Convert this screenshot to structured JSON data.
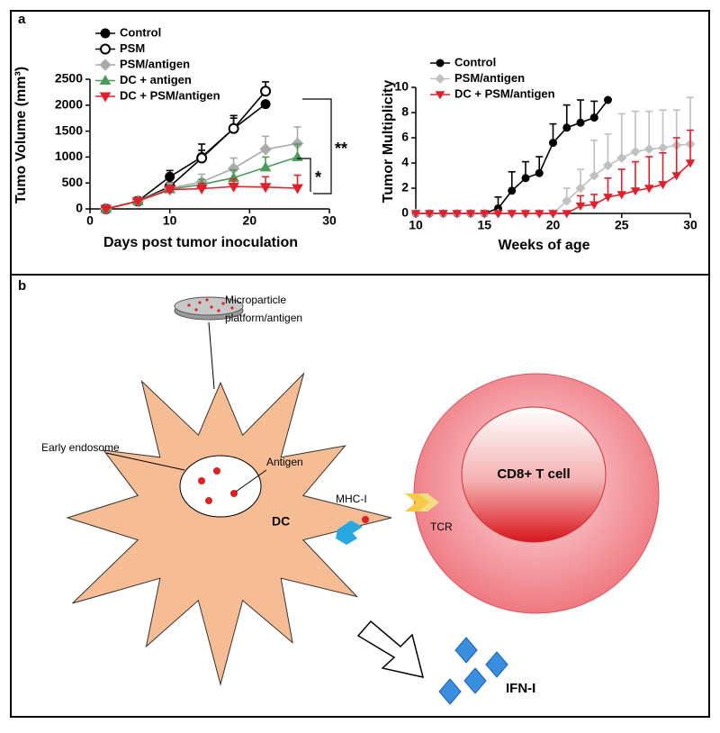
{
  "panel_labels": [
    "a",
    "b"
  ],
  "chart_data": [
    {
      "type": "line",
      "y_label": "Tumo Volume (mm³)",
      "x_label": "Days post tumor inoculation",
      "x": [
        2,
        6,
        10,
        14,
        18,
        22,
        26
      ],
      "xlim": [
        0,
        30
      ],
      "xticks": [
        0,
        10,
        20,
        30
      ],
      "ylim": [
        0,
        2500
      ],
      "yticks": [
        0,
        500,
        1000,
        1500,
        2000,
        2500
      ],
      "legend": "upper left",
      "annotations": [
        "**",
        "*"
      ],
      "series": [
        {
          "name": "Control",
          "color": "#000000",
          "marker": "circle",
          "values": [
            0,
            150,
            620,
            1000,
            1550,
            2020,
            null
          ],
          "errors": [
            0,
            20,
            120,
            250,
            200,
            0,
            null
          ]
        },
        {
          "name": "PSM",
          "color": "#000000",
          "marker": "open-circle",
          "values": [
            0,
            150,
            430,
            980,
            1550,
            2270,
            null
          ],
          "errors": [
            0,
            20,
            80,
            150,
            250,
            180,
            null
          ]
        },
        {
          "name": "PSM/antigen",
          "color": "#aaaaaa",
          "marker": "diamond",
          "values": [
            0,
            150,
            400,
            520,
            780,
            1150,
            1260
          ],
          "errors": [
            0,
            20,
            100,
            150,
            200,
            250,
            320
          ]
        },
        {
          "name": "DC + antigen",
          "color": "#4c9a5a",
          "marker": "triangle",
          "values": [
            0,
            150,
            380,
            470,
            600,
            800,
            1000
          ],
          "errors": [
            0,
            20,
            80,
            100,
            150,
            200,
            250
          ]
        },
        {
          "name": "DC + PSM/antigen",
          "color": "#e0202a",
          "marker": "triangle-down",
          "values": [
            0,
            150,
            370,
            390,
            430,
            420,
            400
          ],
          "errors": [
            0,
            20,
            80,
            100,
            150,
            200,
            250
          ]
        }
      ]
    },
    {
      "type": "line",
      "y_label": "Tumor Multiplicity",
      "x_label": "Weeks of age",
      "x": [
        10,
        11,
        12,
        13,
        14,
        15,
        16,
        17,
        18,
        19,
        20,
        21,
        22,
        23,
        24,
        25,
        26,
        27,
        28,
        29,
        30
      ],
      "xlim": [
        10,
        30
      ],
      "xticks": [
        10,
        15,
        20,
        25,
        30
      ],
      "ylim": [
        0,
        10
      ],
      "yticks": [
        0,
        2,
        4,
        6,
        8,
        10
      ],
      "legend": "upper left",
      "series": [
        {
          "name": "Control",
          "color": "#000000",
          "marker": "circle",
          "values": [
            0,
            0,
            0,
            0,
            0,
            0,
            0.4,
            1.8,
            2.8,
            3.2,
            5.6,
            6.8,
            7.2,
            7.6,
            9,
            null,
            null,
            null,
            null,
            null,
            null
          ],
          "errors": [
            0,
            0,
            0,
            0,
            0,
            0,
            0.9,
            1.5,
            1.3,
            1.3,
            1.5,
            1.8,
            1.8,
            1.3,
            0,
            null,
            null,
            null,
            null,
            null,
            null
          ]
        },
        {
          "name": "PSM/antigen",
          "color": "#c0c0c0",
          "marker": "diamond",
          "values": [
            0,
            0,
            0,
            0,
            0,
            0,
            0,
            0,
            0,
            0,
            0,
            1,
            2,
            3,
            3.8,
            4.4,
            4.9,
            5.1,
            5.2,
            5.4,
            5.5
          ],
          "errors": [
            0,
            0,
            0,
            0,
            0,
            0,
            0,
            0,
            0,
            0,
            0,
            1,
            1.5,
            2.8,
            2.5,
            3.5,
            3.2,
            3,
            3,
            2.8,
            3.7
          ]
        },
        {
          "name": "DC + PSM/antigen",
          "color": "#e0202a",
          "marker": "triangle-down",
          "values": [
            0,
            0,
            0,
            0,
            0,
            0,
            0,
            0,
            0,
            0,
            0,
            0,
            0.6,
            0.7,
            1.3,
            1.5,
            1.8,
            2,
            2.3,
            3,
            4
          ],
          "errors": [
            0,
            0,
            0,
            0,
            0,
            0,
            0,
            0,
            0,
            0,
            0,
            0,
            0.8,
            0.8,
            1.5,
            2,
            2.3,
            2.5,
            2.5,
            3,
            2.6
          ]
        }
      ]
    }
  ],
  "diagram": {
    "microparticle_label": [
      "Microparticle",
      "platform/antigen"
    ],
    "early_endosome": "Early endosome",
    "antigen": "Antigen",
    "dc": "DC",
    "mhc": "MHC-I",
    "tcr": "TCR",
    "t_cell": "CD8+ T cell",
    "ifn": "IFN-I"
  }
}
